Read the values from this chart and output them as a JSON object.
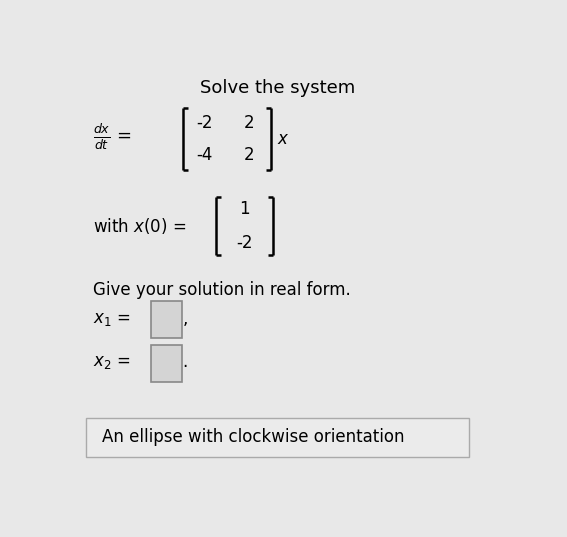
{
  "title": "Solve the system",
  "background_color": "#e8e8e8",
  "text_color": "#000000",
  "matrix_row1": [
    "-2",
    "2"
  ],
  "matrix_row2": [
    "-4",
    "2"
  ],
  "init_cond_row1": "1",
  "init_cond_row2": "-2",
  "give_solution": "Give your solution in real form.",
  "answer_box_text": "An ellipse with clockwise orientation",
  "fig_width": 5.67,
  "fig_height": 5.37,
  "dpi": 100,
  "bracket_lw": 1.8,
  "bracket_tick": 0.012
}
